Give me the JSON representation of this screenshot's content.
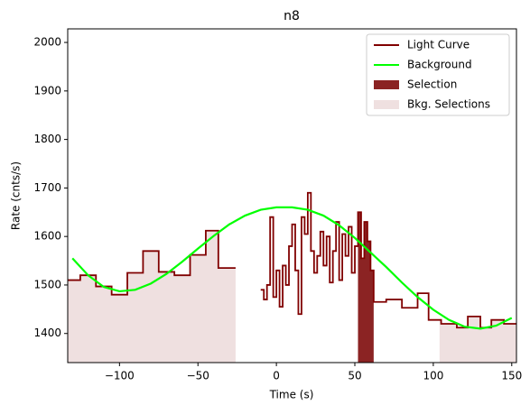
{
  "chart_data": {
    "type": "step",
    "title": "n8",
    "xlabel": "Time (s)",
    "ylabel": "Rate (cnts/s)",
    "xlim": [
      -133,
      153
    ],
    "ylim": [
      1340,
      2028
    ],
    "xticks": [
      {
        "value": -100,
        "label": "−100"
      },
      {
        "value": -50,
        "label": "−50"
      },
      0,
      50,
      100,
      150
    ],
    "yticks": [
      1400,
      1500,
      1600,
      1700,
      1800,
      1900,
      2000
    ],
    "legend": "upper right",
    "series": [
      {
        "name": "Light Curve",
        "color": "#800000",
        "x": [
          -133,
          -125,
          -115,
          -105,
          -95,
          -85,
          -75,
          -65,
          -55,
          -45,
          -37,
          -26,
          -10,
          -8,
          -6,
          -4,
          -2,
          0,
          2,
          4,
          6,
          8,
          10,
          12,
          14,
          16,
          18,
          20,
          22,
          24,
          26,
          28,
          30,
          32,
          34,
          36,
          38,
          40,
          42,
          44,
          46,
          48,
          50,
          52,
          54,
          56,
          58,
          60,
          62,
          70,
          80,
          90,
          97,
          105,
          115,
          122,
          130,
          137,
          145,
          153
        ],
        "values": [
          1510,
          1520,
          1497,
          1480,
          1525,
          1570,
          1527,
          1520,
          1562,
          1612,
          1535,
          null,
          1490,
          1470,
          1500,
          1640,
          1475,
          1530,
          1455,
          1540,
          1500,
          1580,
          1625,
          1530,
          1440,
          1640,
          1605,
          1690,
          1570,
          1525,
          1560,
          1610,
          1540,
          1600,
          1505,
          1570,
          1630,
          1510,
          1605,
          1560,
          1620,
          1525,
          1580,
          1650,
          1555,
          1630,
          1590,
          1530,
          1465,
          1470,
          1453,
          1483,
          1428,
          1420,
          1412,
          1435,
          1412,
          1428,
          1420,
          1420
        ]
      },
      {
        "name": "Background",
        "color": "#00ff00",
        "x": [
          -130,
          -120,
          -110,
          -100,
          -90,
          -80,
          -70,
          -60,
          -50,
          -40,
          -30,
          -20,
          -10,
          0,
          10,
          20,
          30,
          40,
          50,
          60,
          70,
          80,
          90,
          100,
          110,
          120,
          130,
          140,
          150
        ],
        "values": [
          1555,
          1520,
          1496,
          1487,
          1490,
          1503,
          1523,
          1548,
          1575,
          1601,
          1625,
          1643,
          1655,
          1660,
          1660,
          1655,
          1643,
          1623,
          1597,
          1567,
          1537,
          1505,
          1475,
          1449,
          1428,
          1414,
          1410,
          1416,
          1432
        ]
      }
    ],
    "selection": {
      "name": "Selection",
      "color": "#8b2323",
      "range": [
        52,
        62
      ]
    },
    "bkg_selections": {
      "name": "Bkg. Selections",
      "color": "#efe0e0",
      "ranges": [
        [
          -133,
          -26
        ],
        [
          104,
          153
        ]
      ]
    }
  }
}
